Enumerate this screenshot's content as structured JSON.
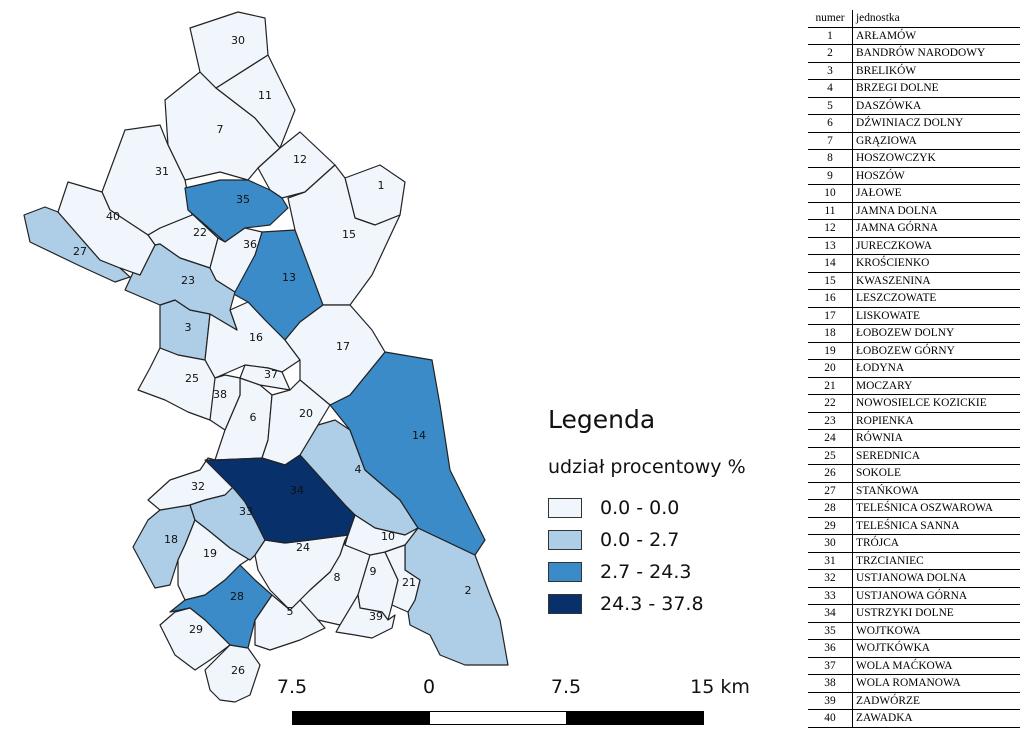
{
  "legend": {
    "title": "Legenda",
    "subtitle": "udział procentowy %",
    "classes": [
      {
        "label": "0.0 - 0.0",
        "color": "#f1f6fd"
      },
      {
        "label": "0.0 - 2.7",
        "color": "#aecde6"
      },
      {
        "label": "2.7 - 24.3",
        "color": "#3b8bc8"
      },
      {
        "label": "24.3 - 37.8",
        "color": "#08306b"
      }
    ]
  },
  "scalebar": {
    "labels": [
      "7.5",
      "0",
      "7.5",
      "15 km"
    ]
  },
  "table": {
    "header": {
      "num": "numer",
      "name": "jednostka"
    },
    "rows": [
      {
        "num": "1",
        "name": "ARŁAMÓW"
      },
      {
        "num": "2",
        "name": "BANDRÓW NARODOWY"
      },
      {
        "num": "3",
        "name": "BRELIKÓW"
      },
      {
        "num": "4",
        "name": "BRZEGI DOLNE"
      },
      {
        "num": "5",
        "name": "DASZÓWKA"
      },
      {
        "num": "6",
        "name": "DŹWINIACZ DOLNY"
      },
      {
        "num": "7",
        "name": "GRĄZIOWA"
      },
      {
        "num": "8",
        "name": "HOSZOWCZYK"
      },
      {
        "num": "9",
        "name": "HOSZÓW"
      },
      {
        "num": "10",
        "name": "JAŁOWE"
      },
      {
        "num": "11",
        "name": "JAMNA DOLNA"
      },
      {
        "num": "12",
        "name": "JAMNA GÓRNA"
      },
      {
        "num": "13",
        "name": "JURECZKOWA"
      },
      {
        "num": "14",
        "name": "KROŚCIENKO"
      },
      {
        "num": "15",
        "name": "KWASZENINA"
      },
      {
        "num": "16",
        "name": "LESZCZOWATE"
      },
      {
        "num": "17",
        "name": "LISKOWATE"
      },
      {
        "num": "18",
        "name": "ŁOBOZEW DOLNY"
      },
      {
        "num": "19",
        "name": "ŁOBOZEW GÓRNY"
      },
      {
        "num": "20",
        "name": "ŁODYNA"
      },
      {
        "num": "21",
        "name": "MOCZARY"
      },
      {
        "num": "22",
        "name": "NOWOSIELCE KOZICKIE"
      },
      {
        "num": "23",
        "name": "ROPIENKA"
      },
      {
        "num": "24",
        "name": "RÓWNIA"
      },
      {
        "num": "25",
        "name": "SEREDNICA"
      },
      {
        "num": "26",
        "name": "SOKOLE"
      },
      {
        "num": "27",
        "name": "STAŃKOWA"
      },
      {
        "num": "28",
        "name": "TELEŚNICA OSZWAROWA"
      },
      {
        "num": "29",
        "name": "TELEŚNICA SANNA"
      },
      {
        "num": "30",
        "name": "TRÓJCA"
      },
      {
        "num": "31",
        "name": "TRZCIANIEC"
      },
      {
        "num": "32",
        "name": "USTJANOWA DOLNA"
      },
      {
        "num": "33",
        "name": "USTJANOWA GÓRNA"
      },
      {
        "num": "34",
        "name": "USTRZYKI DOLNE"
      },
      {
        "num": "35",
        "name": "WOJTKOWA"
      },
      {
        "num": "36",
        "name": "WOJTKÓWKA"
      },
      {
        "num": "37",
        "name": "WOLA MAĆKOWA"
      },
      {
        "num": "38",
        "name": "WOLA ROMANOWA"
      },
      {
        "num": "39",
        "name": "ZADWÓRZE"
      },
      {
        "num": "40",
        "name": "ZAWADKA"
      }
    ]
  },
  "map": {
    "units": [
      {
        "num": "1",
        "cls": 0
      },
      {
        "num": "2",
        "cls": 1
      },
      {
        "num": "3",
        "cls": 1
      },
      {
        "num": "4",
        "cls": 1
      },
      {
        "num": "5",
        "cls": 0
      },
      {
        "num": "6",
        "cls": 0
      },
      {
        "num": "7",
        "cls": 0
      },
      {
        "num": "8",
        "cls": 0
      },
      {
        "num": "9",
        "cls": 0
      },
      {
        "num": "10",
        "cls": 0
      },
      {
        "num": "11",
        "cls": 0
      },
      {
        "num": "12",
        "cls": 0
      },
      {
        "num": "13",
        "cls": 2
      },
      {
        "num": "14",
        "cls": 2
      },
      {
        "num": "15",
        "cls": 0
      },
      {
        "num": "16",
        "cls": 0
      },
      {
        "num": "17",
        "cls": 0
      },
      {
        "num": "18",
        "cls": 1
      },
      {
        "num": "19",
        "cls": 0
      },
      {
        "num": "20",
        "cls": 0
      },
      {
        "num": "21",
        "cls": 0
      },
      {
        "num": "22",
        "cls": 0
      },
      {
        "num": "23",
        "cls": 1
      },
      {
        "num": "24",
        "cls": 0
      },
      {
        "num": "25",
        "cls": 0
      },
      {
        "num": "26",
        "cls": 0
      },
      {
        "num": "27",
        "cls": 1
      },
      {
        "num": "28",
        "cls": 2
      },
      {
        "num": "29",
        "cls": 0
      },
      {
        "num": "30",
        "cls": 0
      },
      {
        "num": "31",
        "cls": 0
      },
      {
        "num": "32",
        "cls": 0
      },
      {
        "num": "33",
        "cls": 1
      },
      {
        "num": "34",
        "cls": 3
      },
      {
        "num": "35",
        "cls": 2
      },
      {
        "num": "36",
        "cls": 0
      },
      {
        "num": "37",
        "cls": 0
      },
      {
        "num": "38",
        "cls": 0
      },
      {
        "num": "39",
        "cls": 0
      },
      {
        "num": "40",
        "cls": 0
      }
    ]
  }
}
